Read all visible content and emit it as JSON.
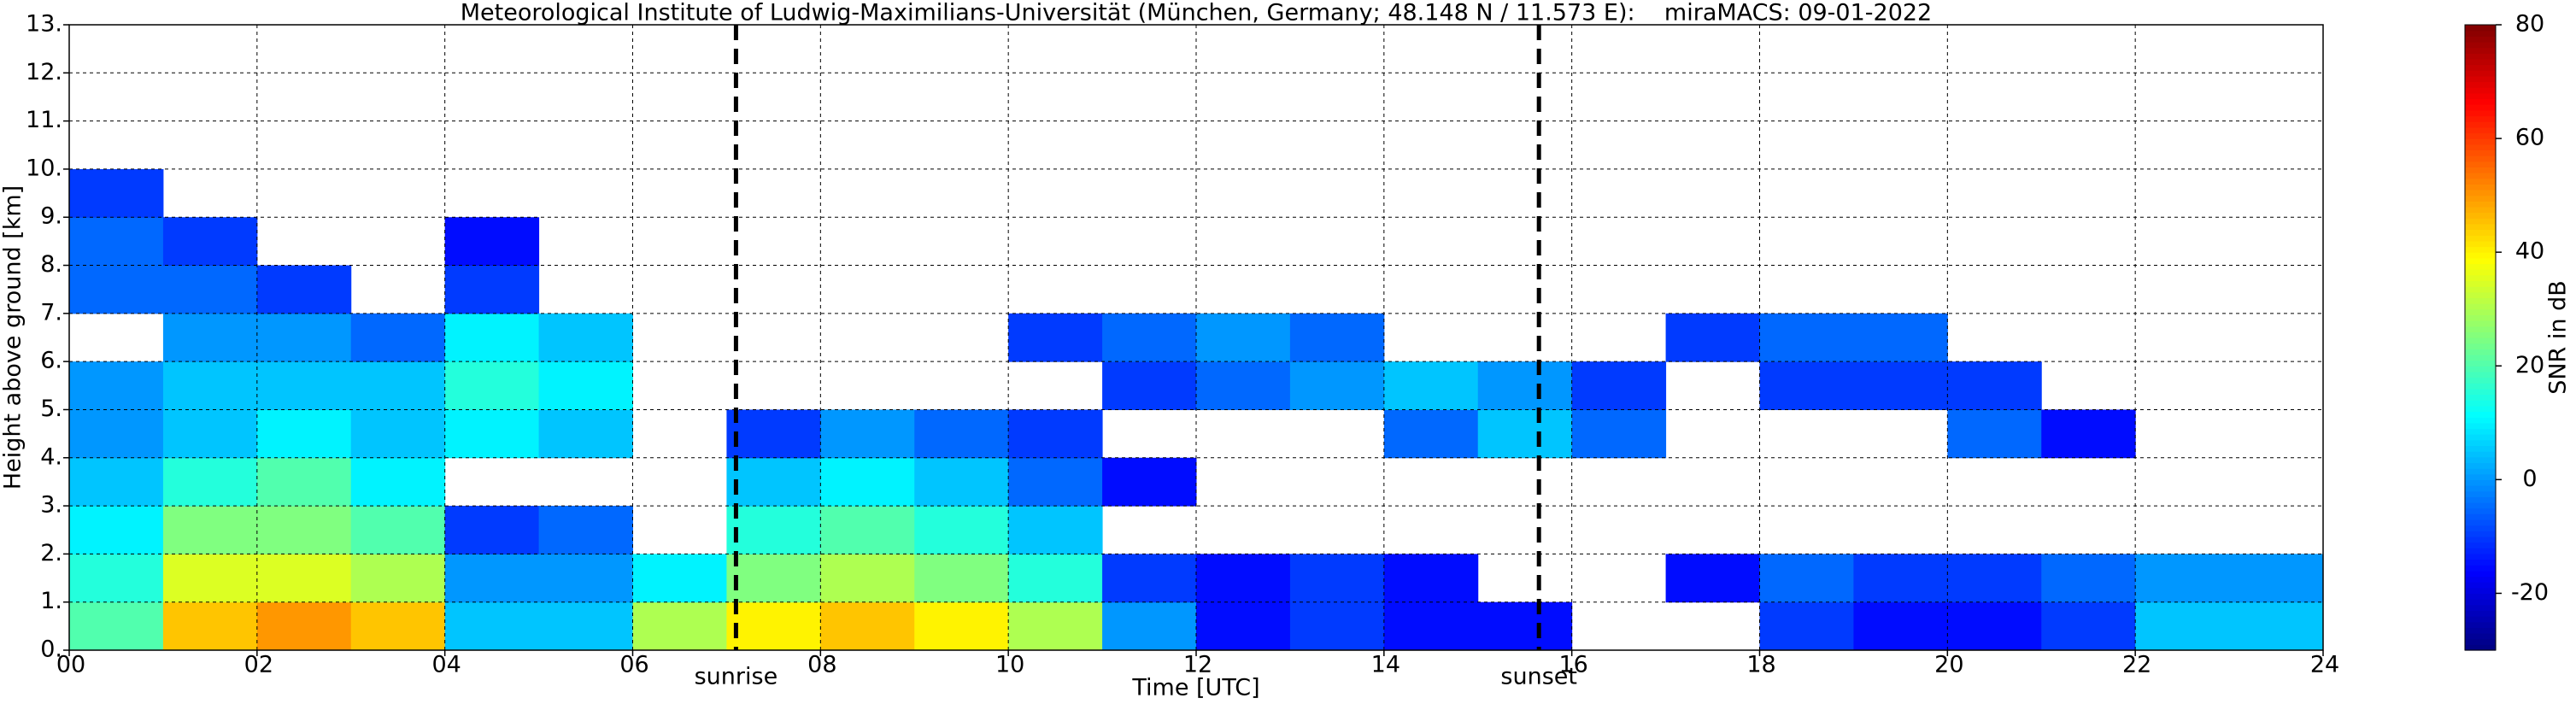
{
  "chart_data": {
    "type": "heatmap",
    "title": "Meteorological Institute of Ludwig-Maximilians-Universität (München, Germany; 48.148 N / 11.573 E):    miraMACS: 09-01-2022",
    "xlabel": "Time [UTC]",
    "ylabel": "Height above ground [km]",
    "colorbar_label": "SNR in dB",
    "xlim": [
      0,
      24
    ],
    "ylim": [
      0,
      13
    ],
    "xticks": [
      {
        "value": 0,
        "label": "00"
      },
      {
        "value": 2,
        "label": "02"
      },
      {
        "value": 4,
        "label": "04"
      },
      {
        "value": 6,
        "label": "06"
      },
      {
        "value": 8,
        "label": "08"
      },
      {
        "value": 10,
        "label": "10"
      },
      {
        "value": 12,
        "label": "12"
      },
      {
        "value": 14,
        "label": "14"
      },
      {
        "value": 16,
        "label": "16"
      },
      {
        "value": 18,
        "label": "18"
      },
      {
        "value": 20,
        "label": "20"
      },
      {
        "value": 22,
        "label": "22"
      },
      {
        "value": 24,
        "label": "24"
      }
    ],
    "yticks": [
      {
        "value": 0,
        "label": "0."
      },
      {
        "value": 1,
        "label": "1."
      },
      {
        "value": 2,
        "label": "2."
      },
      {
        "value": 3,
        "label": "3."
      },
      {
        "value": 4,
        "label": "4."
      },
      {
        "value": 5,
        "label": "5."
      },
      {
        "value": 6,
        "label": "6."
      },
      {
        "value": 7,
        "label": "7."
      },
      {
        "value": 8,
        "label": "8."
      },
      {
        "value": 9,
        "label": "9."
      },
      {
        "value": 10,
        "label": "10."
      },
      {
        "value": 11,
        "label": "11."
      },
      {
        "value": 12,
        "label": "12."
      },
      {
        "value": 13,
        "label": "13."
      }
    ],
    "zlim": [
      -30,
      80
    ],
    "zticks": [
      -20,
      0,
      20,
      40,
      60,
      80
    ],
    "grid": true,
    "colormap": "jet",
    "x_bins": [
      0,
      1,
      2,
      3,
      4,
      5,
      6,
      7,
      8,
      9,
      10,
      11,
      12,
      13,
      14,
      15,
      16,
      17,
      18,
      19,
      20,
      21,
      22,
      23,
      24
    ],
    "y_bins": [
      0,
      1,
      2,
      3,
      4,
      5,
      6,
      7,
      8,
      9,
      10,
      11,
      12,
      13
    ],
    "z": [
      [
        20,
        15,
        10,
        5,
        0,
        0,
        null,
        -5,
        -5,
        -10,
        null,
        null,
        null
      ],
      [
        45,
        35,
        25,
        15,
        5,
        5,
        0,
        -5,
        -10,
        null,
        null,
        null,
        null
      ],
      [
        50,
        35,
        25,
        20,
        10,
        5,
        0,
        -10,
        null,
        null,
        null,
        null,
        null
      ],
      [
        45,
        30,
        20,
        10,
        5,
        5,
        -5,
        null,
        null,
        null,
        null,
        null,
        null
      ],
      [
        5,
        0,
        -10,
        null,
        10,
        15,
        10,
        -10,
        -15,
        null,
        null,
        null,
        null
      ],
      [
        5,
        0,
        -5,
        null,
        5,
        10,
        5,
        null,
        null,
        null,
        null,
        null,
        null
      ],
      [
        30,
        10,
        null,
        null,
        null,
        null,
        null,
        null,
        null,
        null,
        null,
        null,
        null
      ],
      [
        40,
        25,
        15,
        5,
        -10,
        null,
        null,
        null,
        null,
        null,
        null,
        null,
        null
      ],
      [
        45,
        30,
        20,
        10,
        0,
        null,
        null,
        null,
        null,
        null,
        null,
        null,
        null
      ],
      [
        40,
        25,
        15,
        5,
        -5,
        null,
        null,
        null,
        null,
        null,
        null,
        null,
        null
      ],
      [
        30,
        15,
        5,
        -5,
        -10,
        null,
        -10,
        null,
        null,
        null,
        null,
        null,
        null
      ],
      [
        0,
        -10,
        null,
        -15,
        null,
        -10,
        -5,
        null,
        null,
        null,
        null,
        null,
        null
      ],
      [
        -15,
        -15,
        null,
        null,
        null,
        -5,
        0,
        null,
        null,
        null,
        null,
        null,
        null
      ],
      [
        -10,
        -10,
        null,
        null,
        null,
        0,
        -5,
        null,
        null,
        null,
        null,
        null,
        null
      ],
      [
        -15,
        -15,
        null,
        null,
        -5,
        5,
        null,
        null,
        null,
        null,
        null,
        null,
        null
      ],
      [
        -15,
        null,
        null,
        null,
        5,
        0,
        null,
        null,
        null,
        null,
        null,
        null,
        null
      ],
      [
        null,
        null,
        null,
        null,
        -5,
        -10,
        null,
        null,
        null,
        null,
        null,
        null,
        null
      ],
      [
        null,
        -15,
        null,
        null,
        null,
        null,
        -10,
        null,
        null,
        null,
        null,
        null,
        null
      ],
      [
        -10,
        -5,
        null,
        null,
        null,
        -10,
        -5,
        null,
        null,
        null,
        null,
        null,
        null
      ],
      [
        -15,
        -10,
        null,
        null,
        null,
        -10,
        -5,
        null,
        null,
        null,
        null,
        null,
        null
      ],
      [
        -15,
        -10,
        null,
        null,
        -5,
        -10,
        null,
        null,
        null,
        null,
        null,
        null,
        null
      ],
      [
        -10,
        -5,
        null,
        null,
        -15,
        null,
        null,
        null,
        null,
        null,
        null,
        null,
        null
      ],
      [
        5,
        0,
        null,
        null,
        null,
        null,
        null,
        null,
        null,
        null,
        null,
        null,
        null
      ],
      [
        5,
        0,
        null,
        null,
        null,
        null,
        null,
        null,
        null,
        null,
        null,
        null,
        null
      ]
    ],
    "annotations": [
      {
        "label": "sunrise",
        "x": 7.1
      },
      {
        "label": "sunset",
        "x": 15.65
      }
    ]
  }
}
